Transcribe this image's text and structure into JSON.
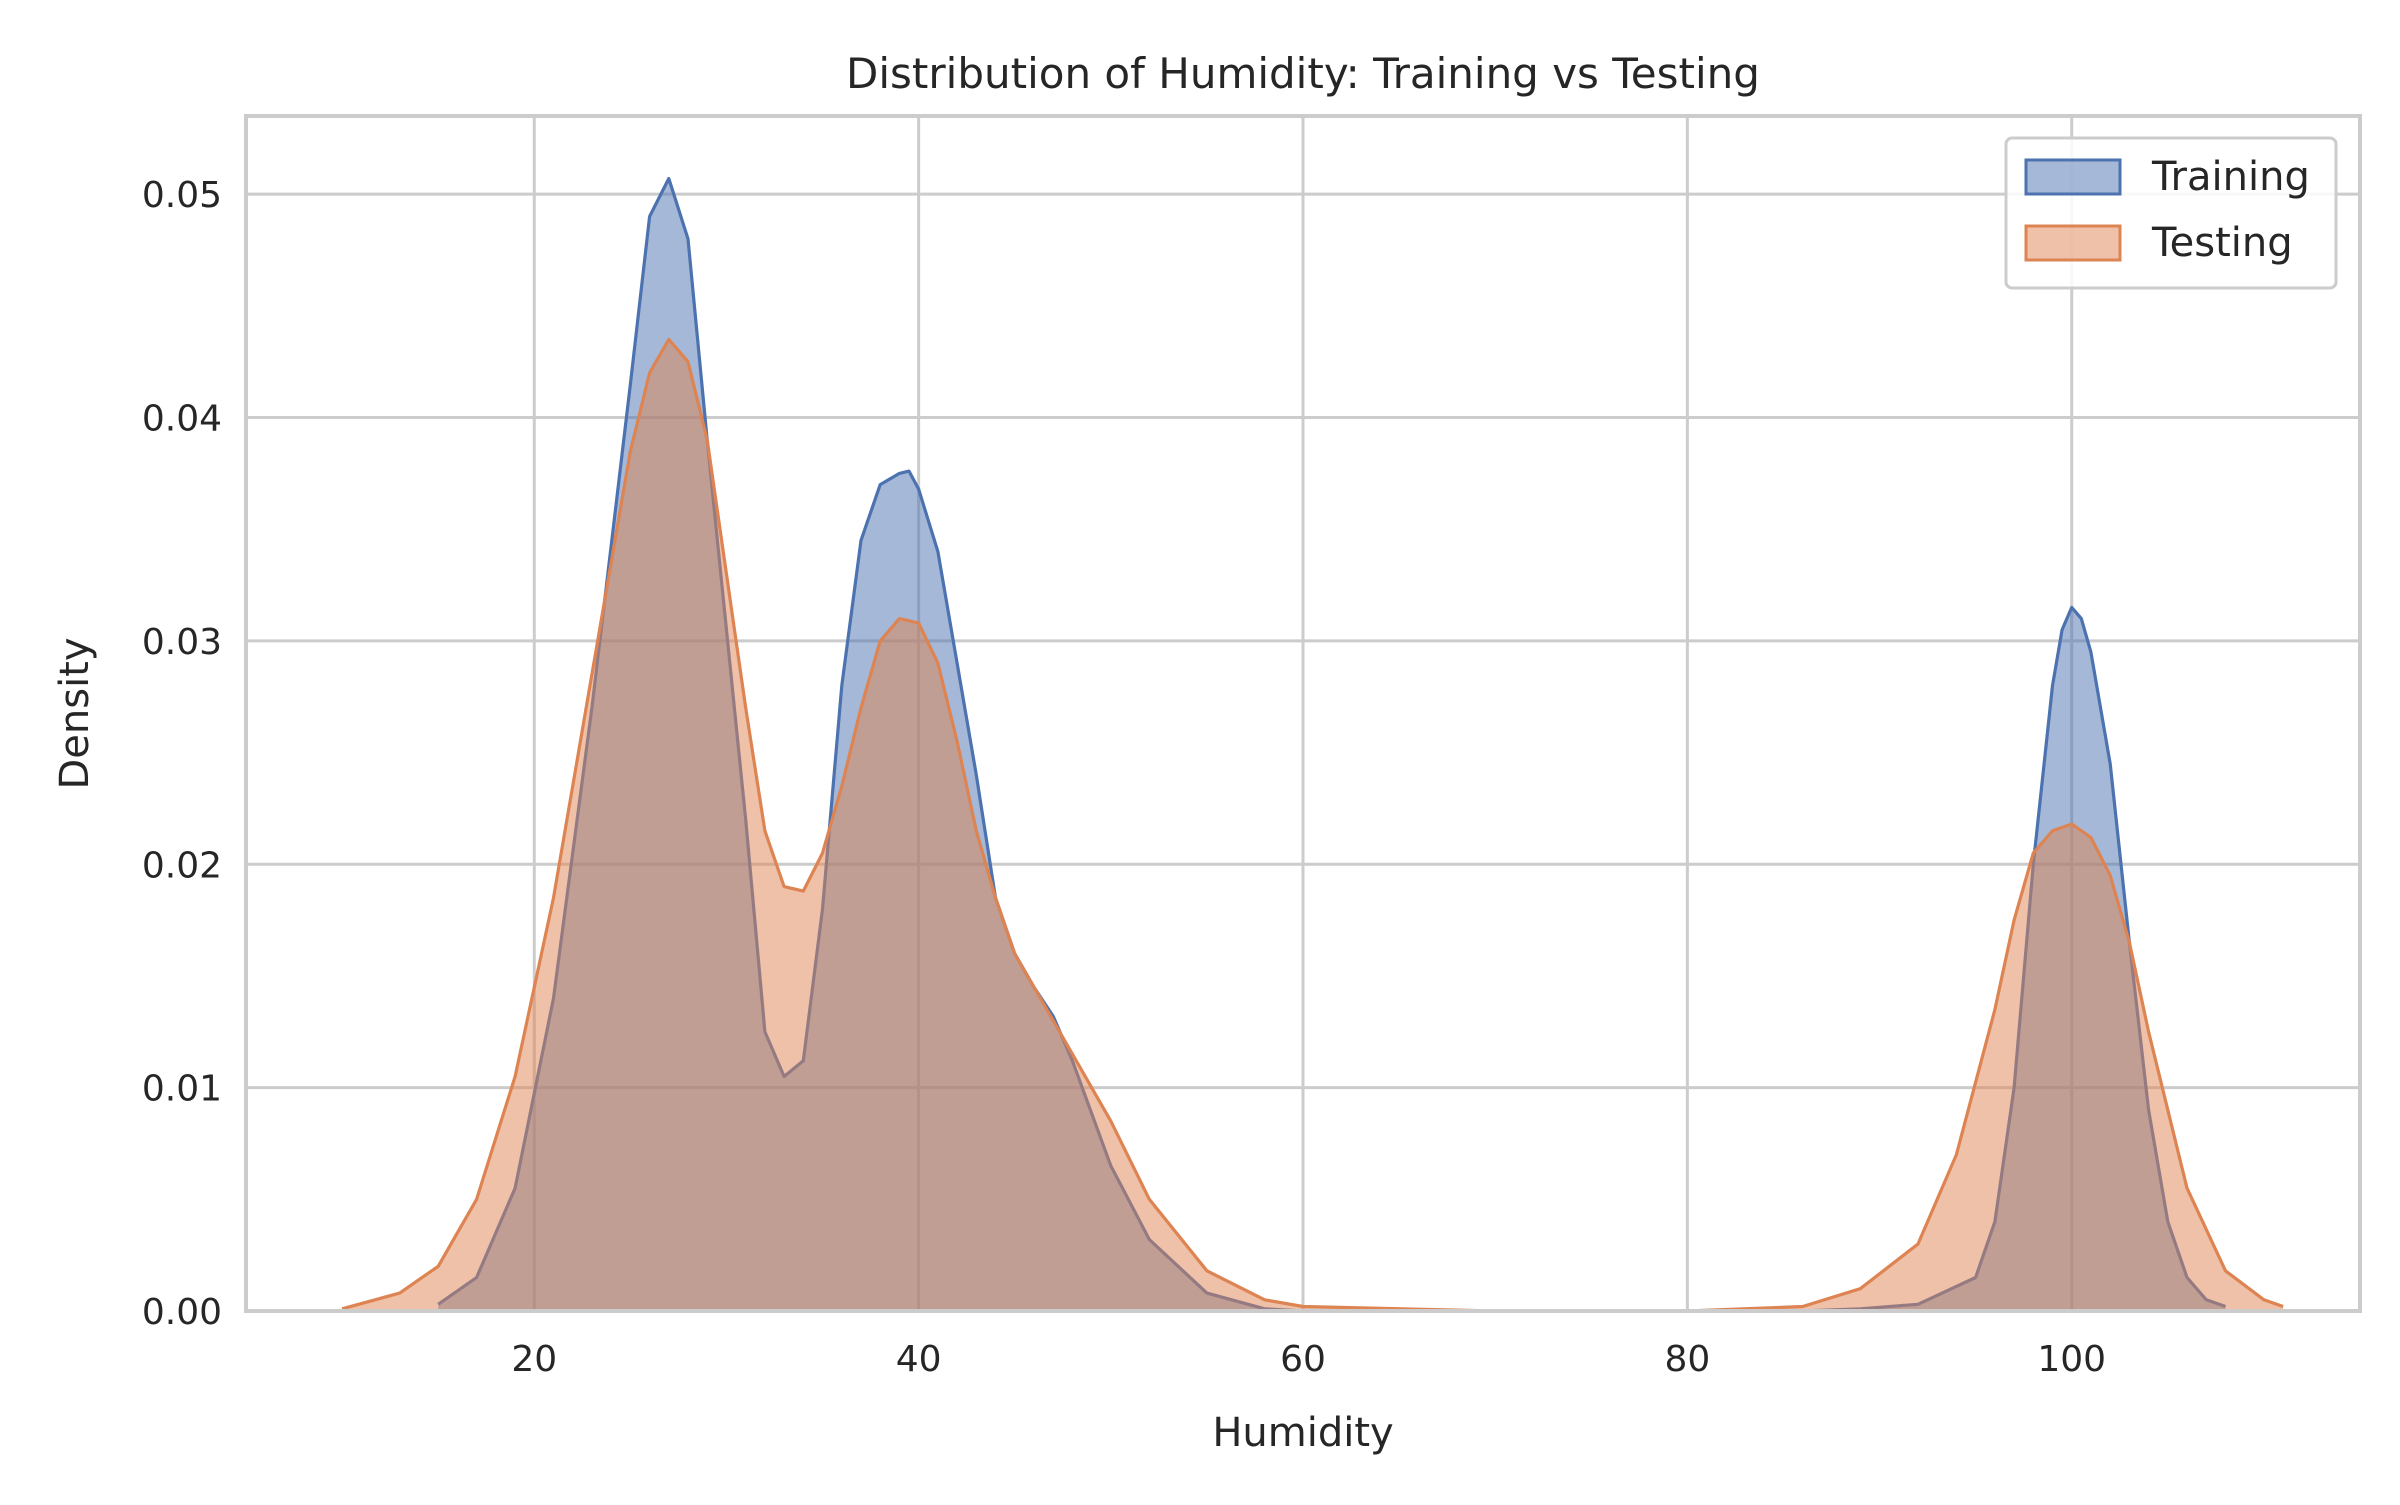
{
  "chart_data": {
    "type": "area",
    "title": "Distribution of Humidity: Training vs Testing",
    "xlabel": "Humidity",
    "ylabel": "Density",
    "xlim": [
      5,
      115
    ],
    "ylim": [
      0,
      0.0535
    ],
    "xticks": [
      20,
      40,
      60,
      80,
      100
    ],
    "xtick_labels": [
      "20",
      "40",
      "60",
      "80",
      "100"
    ],
    "yticks": [
      0,
      0.01,
      0.02,
      0.03,
      0.04,
      0.05
    ],
    "ytick_labels": [
      "0.00",
      "0.01",
      "0.02",
      "0.03",
      "0.04",
      "0.05"
    ],
    "grid": true,
    "legend_position": "top-right",
    "series": [
      {
        "name": "Training",
        "color": "#4c72b0",
        "fill_opacity": 0.5,
        "x": [
          15,
          17,
          19,
          21,
          23,
          25,
          26,
          27,
          28,
          29,
          31,
          32,
          33,
          34,
          35,
          36,
          37,
          38,
          39,
          39.5,
          40,
          41,
          42,
          43,
          44,
          45,
          46,
          47,
          48,
          50,
          52,
          55,
          58,
          60,
          70,
          80,
          86,
          89,
          92,
          95,
          96,
          97,
          98,
          99,
          99.5,
          100,
          100.5,
          101,
          102,
          103,
          104,
          105,
          106,
          107,
          108
        ],
        "y": [
          0.0003,
          0.0015,
          0.0055,
          0.014,
          0.027,
          0.0415,
          0.049,
          0.0507,
          0.048,
          0.039,
          0.022,
          0.0125,
          0.0105,
          0.0112,
          0.018,
          0.028,
          0.0345,
          0.037,
          0.0375,
          0.0376,
          0.0368,
          0.034,
          0.029,
          0.024,
          0.0185,
          0.016,
          0.0145,
          0.0132,
          0.0112,
          0.0065,
          0.0032,
          0.0008,
          0.0001,
          0,
          0,
          0,
          0,
          0.0001,
          0.0003,
          0.0015,
          0.004,
          0.01,
          0.02,
          0.028,
          0.0305,
          0.0315,
          0.031,
          0.0295,
          0.0245,
          0.0165,
          0.009,
          0.004,
          0.0015,
          0.0005,
          0.0002
        ]
      },
      {
        "name": "Testing",
        "color": "#dd8452",
        "fill_opacity": 0.5,
        "x": [
          10,
          13,
          15,
          17,
          19,
          21,
          23,
          25,
          26,
          27,
          28,
          29,
          31,
          32,
          33,
          34,
          35,
          36,
          37,
          38,
          39,
          40,
          41,
          42,
          43,
          44,
          45,
          46,
          48,
          50,
          52,
          55,
          58,
          60,
          70,
          80,
          86,
          89,
          92,
          94,
          96,
          97,
          98,
          99,
          100,
          101,
          102,
          103,
          104,
          106,
          108,
          110,
          111
        ],
        "y": [
          0.0001,
          0.0008,
          0.002,
          0.005,
          0.0105,
          0.0185,
          0.0285,
          0.0385,
          0.042,
          0.0435,
          0.0425,
          0.039,
          0.027,
          0.0215,
          0.019,
          0.0188,
          0.0205,
          0.0235,
          0.027,
          0.03,
          0.031,
          0.0308,
          0.029,
          0.0255,
          0.0215,
          0.0185,
          0.016,
          0.0145,
          0.0115,
          0.0085,
          0.005,
          0.0018,
          0.0005,
          0.0002,
          0,
          0,
          0.0002,
          0.001,
          0.003,
          0.007,
          0.0135,
          0.0175,
          0.0205,
          0.0215,
          0.0218,
          0.0212,
          0.0195,
          0.0165,
          0.0125,
          0.0055,
          0.0018,
          0.0005,
          0.0002
        ]
      }
    ]
  }
}
